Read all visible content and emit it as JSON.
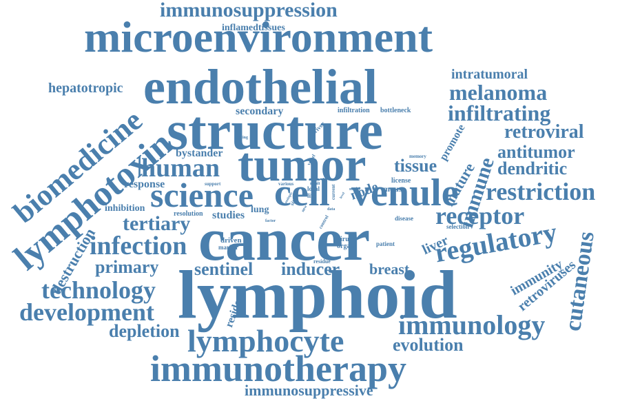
{
  "words": [
    {
      "text": "lymphoid",
      "weight": 100
    },
    {
      "text": "cancer",
      "weight": 88
    },
    {
      "text": "structure",
      "weight": 82
    },
    {
      "text": "endothelial",
      "weight": 80
    },
    {
      "text": "tumor",
      "weight": 78
    },
    {
      "text": "microenvironment",
      "weight": 76
    },
    {
      "text": "cell",
      "weight": 70
    },
    {
      "text": "venule",
      "weight": 64
    },
    {
      "text": "lymphotoxin",
      "weight": 55
    },
    {
      "text": "biomedicine",
      "weight": 50
    },
    {
      "text": "science",
      "weight": 50
    },
    {
      "text": "immunotherapy",
      "weight": 55
    },
    {
      "text": "lymphocyte",
      "weight": 50
    },
    {
      "text": "immunology",
      "weight": 44
    },
    {
      "text": "regulatory",
      "weight": 42
    },
    {
      "text": "restriction",
      "weight": 42
    },
    {
      "text": "human",
      "weight": 40
    },
    {
      "text": "infection",
      "weight": 40
    },
    {
      "text": "technology",
      "weight": 38
    },
    {
      "text": "development",
      "weight": 38
    },
    {
      "text": "receptor",
      "weight": 38
    },
    {
      "text": "cutaneous",
      "weight": 36
    },
    {
      "text": "melanoma",
      "weight": 34
    },
    {
      "text": "infiltrating",
      "weight": 34
    },
    {
      "text": "tertiary",
      "weight": 34
    },
    {
      "text": "immunosuppression",
      "weight": 32
    },
    {
      "text": "immune",
      "weight": 32
    },
    {
      "text": "primary",
      "weight": 30
    },
    {
      "text": "sentinel",
      "weight": 30
    },
    {
      "text": "inducer",
      "weight": 30
    },
    {
      "text": "tissue",
      "weight": 28
    },
    {
      "text": "evolution",
      "weight": 28
    },
    {
      "text": "depletion",
      "weight": 28
    },
    {
      "text": "retroviral",
      "weight": 28
    },
    {
      "text": "antitumor",
      "weight": 26
    },
    {
      "text": "dendritic",
      "weight": 26
    },
    {
      "text": "mature",
      "weight": 26
    },
    {
      "text": "destruction",
      "weight": 26
    },
    {
      "text": "breast",
      "weight": 26
    },
    {
      "text": "hepatotropic",
      "weight": 22
    },
    {
      "text": "liver",
      "weight": 22
    },
    {
      "text": "retroviruses",
      "weight": 22
    },
    {
      "text": "immunity",
      "weight": 22
    },
    {
      "text": "immunosuppressive",
      "weight": 22
    },
    {
      "text": "intratumoral",
      "weight": 20
    },
    {
      "text": "node",
      "weight": 22
    },
    {
      "text": "secondary",
      "weight": 18
    },
    {
      "text": "response",
      "weight": 18
    },
    {
      "text": "bystander",
      "weight": 18
    },
    {
      "text": "promote",
      "weight": 18
    },
    {
      "text": "resident",
      "weight": 18
    },
    {
      "text": "studies",
      "weight": 16
    },
    {
      "text": "inhibition",
      "weight": 16
    },
    {
      "text": "inflamedtissues",
      "weight": 16
    },
    {
      "text": "lung",
      "weight": 16
    },
    {
      "text": "mouse",
      "weight": 12
    },
    {
      "text": "infiltration",
      "weight": 10
    },
    {
      "text": "bottleneck",
      "weight": 10
    },
    {
      "text": "resolution",
      "weight": 10
    },
    {
      "text": "driven",
      "weight": 10
    },
    {
      "text": "marker",
      "weight": 8
    },
    {
      "text": "virus",
      "weight": 10
    },
    {
      "text": "organ",
      "weight": 10
    },
    {
      "text": "license",
      "weight": 10
    },
    {
      "text": "driver",
      "weight": 8
    },
    {
      "text": "patient",
      "weight": 8
    },
    {
      "text": "disease",
      "weight": 8
    },
    {
      "text": "selection",
      "weight": 8
    },
    {
      "text": "local",
      "weight": 8
    },
    {
      "text": "life",
      "weight": 8
    },
    {
      "text": "residue",
      "weight": 8
    },
    {
      "text": "memory",
      "weight": 8
    },
    {
      "text": "support",
      "weight": 8
    },
    {
      "text": "various",
      "weight": 8
    },
    {
      "text": "setting",
      "weight": 6
    },
    {
      "text": "result",
      "weight": 6
    },
    {
      "text": "model",
      "weight": 6
    },
    {
      "text": "data",
      "weight": 6
    },
    {
      "text": "factor",
      "weight": 6
    },
    {
      "text": "control",
      "weight": 6
    },
    {
      "text": "vessel",
      "weight": 6
    },
    {
      "text": "current",
      "weight": 6
    },
    {
      "text": "sites",
      "weight": 8
    },
    {
      "text": "new",
      "weight": 6
    },
    {
      "text": "blood",
      "weight": 6
    },
    {
      "text": "multiple",
      "weight": 5
    },
    {
      "text": "level",
      "weight": 5
    }
  ],
  "style": {
    "color": "#4a7fad",
    "background": "#ffffff"
  }
}
